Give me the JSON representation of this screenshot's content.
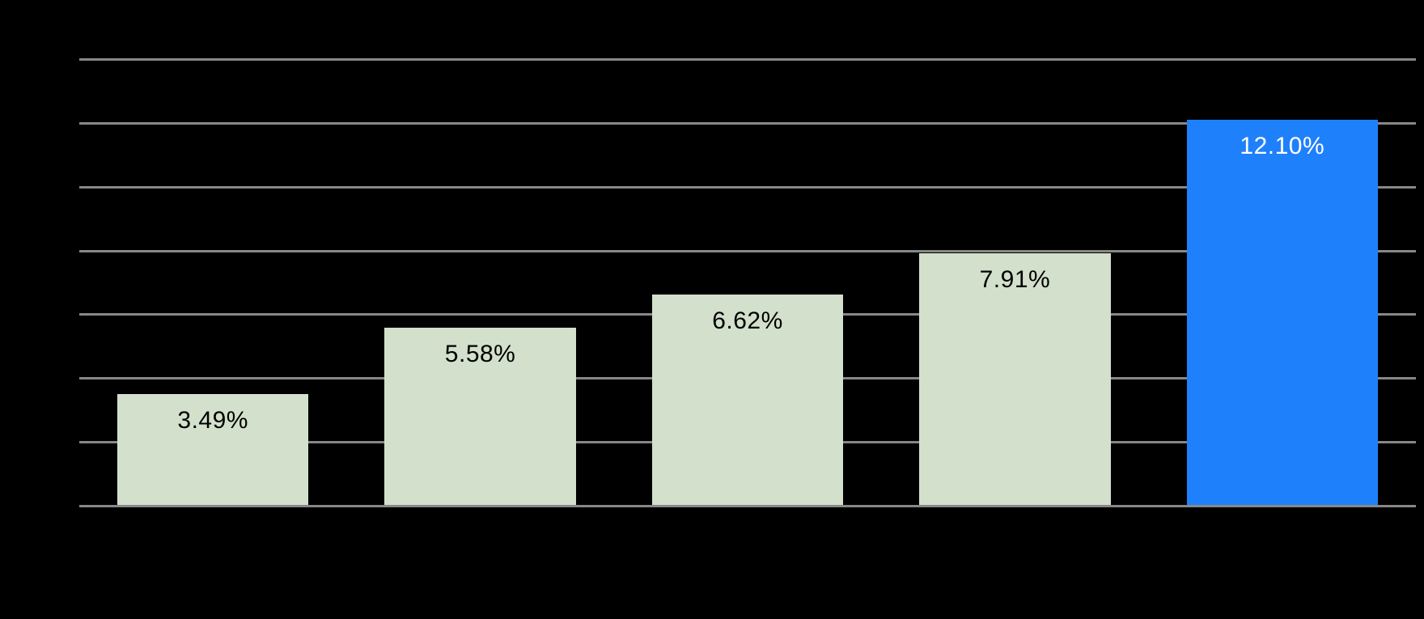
{
  "chart": {
    "background_color": "#000000",
    "gridline_color": "#878787",
    "axis_color": "#878787"
  },
  "chart_data": {
    "type": "bar",
    "title": "",
    "xlabel": "",
    "ylabel": "",
    "categories": [
      "",
      "",
      "",
      "",
      ""
    ],
    "values": [
      3.49,
      5.58,
      6.62,
      7.91,
      12.1
    ],
    "data_labels": [
      "3.49%",
      "5.58%",
      "6.62%",
      "7.91%",
      "12.10%"
    ],
    "ylim": [
      0,
      14
    ],
    "gridline_interval_percent": 2,
    "grid": true,
    "legend": false,
    "y_tick_labels": [],
    "x_tick_labels": [],
    "highlight_index": 4,
    "bar_color_default": "#d3e0cc",
    "bar_color_highlight": "#1f80fc",
    "label_color_default": "#000000",
    "label_color_highlight": "#ffffff"
  }
}
